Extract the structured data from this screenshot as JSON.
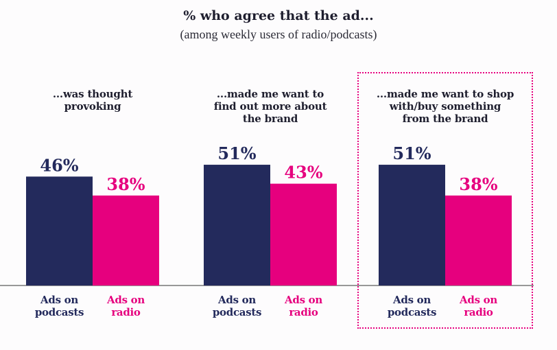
{
  "chart_data": {
    "type": "bar",
    "title": "% who agree that the ad...",
    "subtitle": "(among weekly users of radio/podcasts)",
    "series": [
      {
        "name": "Ads on podcasts",
        "label_lines": [
          "Ads on",
          "podcasts"
        ],
        "color": "#232a5c",
        "values": [
          46,
          51,
          51
        ]
      },
      {
        "name": "Ads on radio",
        "label_lines": [
          "Ads on",
          "radio"
        ],
        "color": "#e6007e",
        "values": [
          38,
          43,
          38
        ]
      }
    ],
    "groups": [
      {
        "label_lines": [
          "...was thought",
          "provoking"
        ]
      },
      {
        "label_lines": [
          "...made me want to",
          "find out more about",
          "the brand"
        ]
      },
      {
        "label_lines": [
          "...made me want to shop",
          "with/buy something",
          "from the brand",
          ""
        ],
        "highlighted": true
      }
    ],
    "value_suffix": "%",
    "ylim": [
      0,
      100
    ]
  }
}
